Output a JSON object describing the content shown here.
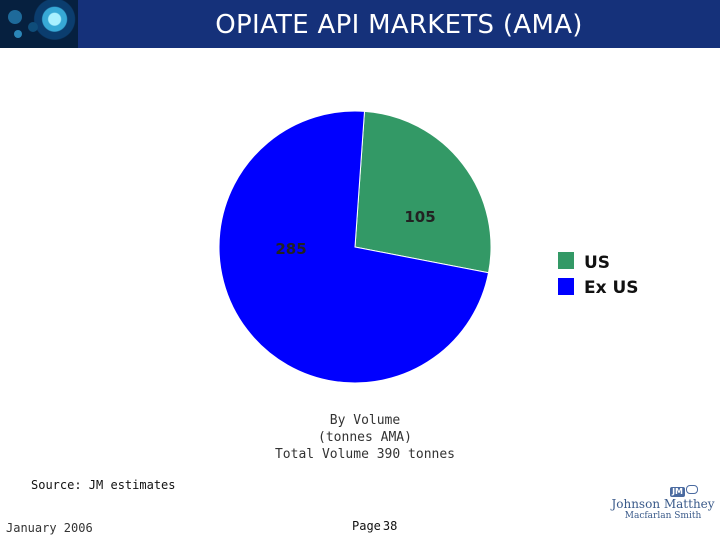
{
  "header": {
    "title": "OPIATE API MARKETS (AMA)"
  },
  "chart_data": {
    "type": "pie",
    "series": [
      {
        "name": "US",
        "value": 105,
        "color": "#339966"
      },
      {
        "name": "Ex US",
        "value": 285,
        "color": "#0000ff"
      }
    ],
    "data_labels": [
      "105",
      "285"
    ],
    "legend": {
      "placement": "right",
      "entries": [
        "US",
        "Ex US"
      ]
    },
    "caption": [
      "By Volume",
      "(tonnes AMA)",
      "Total Volume 390 tonnes"
    ]
  },
  "footer": {
    "source": "Source: JM estimates",
    "date": "January 2006",
    "page_label": "Page",
    "page_number": "38",
    "company_line1": "Johnson Matthey",
    "company_line2": "Macfarlan Smith",
    "company_badge": "JM"
  },
  "colors": {
    "header_bg": "#15317a",
    "us": "#339966",
    "ex_us": "#0000ff"
  }
}
